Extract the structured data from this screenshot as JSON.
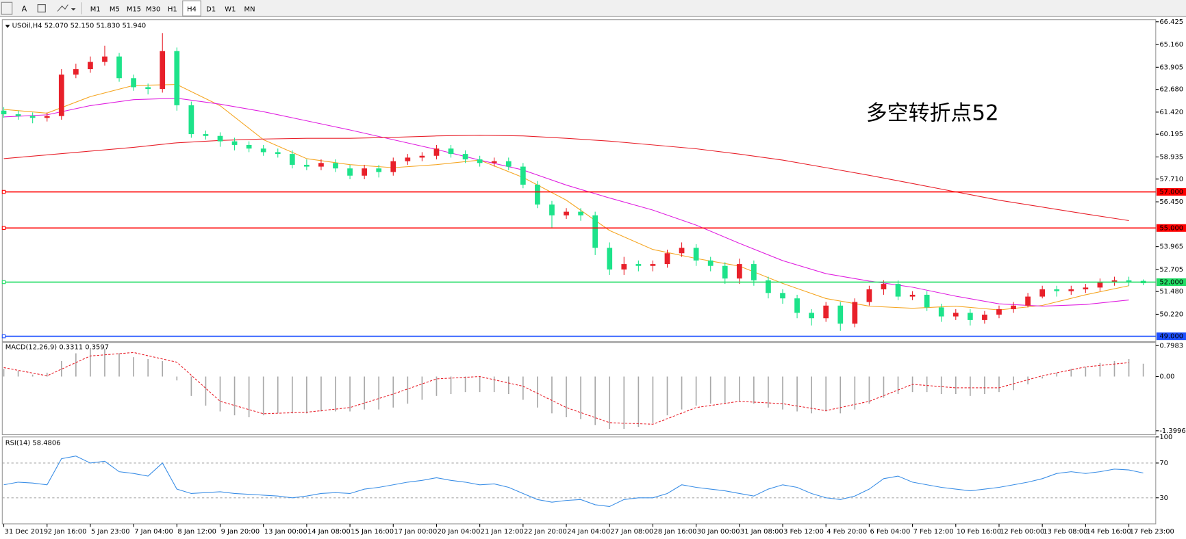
{
  "toolbar": {
    "tools": [
      "A"
    ],
    "timeframes": [
      "M1",
      "M5",
      "M15",
      "M30",
      "H1",
      "H4",
      "D1",
      "W1",
      "MN"
    ],
    "active": 5
  },
  "chart_data": [
    {
      "type": "candlestick",
      "title": "USOil,H4  52.070 52.150 51.830 51.940",
      "annotation": "多空转折点52",
      "annotation_color": "#ff0000",
      "up_color": "#e8202a",
      "down_color": "#1de38a",
      "categories": [
        "31 Dec 2019",
        null,
        null,
        "2 Jan 16:00",
        null,
        null,
        "5 Jan 23:00",
        null,
        null,
        "7 Jan 04:00",
        null,
        null,
        "8 Jan 12:00",
        null,
        null,
        "9 Jan 20:00",
        null,
        null,
        "13 Jan 00:00",
        null,
        null,
        "14 Jan 08:00",
        null,
        null,
        "15 Jan 16:00",
        null,
        null,
        "17 Jan 00:00",
        null,
        null,
        "20 Jan 04:00",
        null,
        null,
        "21 Jan 12:00",
        null,
        null,
        "22 Jan 20:00",
        null,
        null,
        "24 Jan 04:00",
        null,
        null,
        "27 Jan 08:00",
        null,
        null,
        "28 Jan 16:00",
        null,
        null,
        "30 Jan 00:00",
        null,
        null,
        "31 Jan 08:00",
        null,
        null,
        "3 Feb 12:00",
        null,
        null,
        "4 Feb 20:00",
        null,
        null,
        "6 Feb 04:00",
        null,
        null,
        "7 Feb 12:00",
        null,
        null,
        "10 Feb 16:00",
        null,
        null,
        "12 Feb 00:00",
        null,
        null,
        "13 Feb 08:00",
        null,
        null,
        "14 Feb 16:00",
        null,
        null,
        "17 Feb 23:00",
        null
      ],
      "open": [
        61.5,
        61.3,
        61.2,
        61.1,
        61.2,
        63.5,
        63.8,
        64.2,
        64.5,
        63.3,
        62.8,
        62.7,
        64.8,
        61.8,
        60.2,
        60.1,
        59.8,
        59.6,
        59.4,
        59.2,
        59.1,
        58.5,
        58.4,
        58.6,
        58.3,
        57.9,
        58.3,
        58.1,
        58.7,
        58.9,
        59.0,
        59.4,
        59.1,
        58.8,
        58.6,
        58.7,
        58.4,
        57.4,
        56.3,
        55.7,
        55.9,
        55.7,
        53.9,
        52.7,
        53.0,
        52.9,
        53.0,
        53.6,
        53.9,
        53.2,
        52.9,
        52.2,
        53.0,
        52.1,
        51.4,
        51.1,
        50.3,
        50.0,
        50.7,
        49.7,
        50.9,
        51.6,
        51.9,
        51.2,
        51.3,
        50.6,
        50.1,
        50.3,
        49.9,
        50.2,
        50.5,
        50.7,
        51.2,
        51.6,
        51.5,
        51.6,
        51.7,
        52.0,
        52.1,
        52.07
      ],
      "high": [
        61.7,
        61.5,
        61.4,
        61.4,
        63.8,
        64.1,
        64.5,
        65.1,
        64.7,
        63.5,
        63.0,
        65.8,
        65.0,
        62.0,
        60.4,
        60.3,
        60.0,
        59.8,
        59.6,
        59.4,
        59.3,
        58.8,
        58.8,
        58.8,
        58.5,
        58.5,
        58.5,
        58.9,
        59.1,
        59.2,
        59.6,
        59.6,
        59.3,
        59.0,
        58.9,
        58.9,
        58.6,
        57.6,
        56.5,
        56.1,
        56.1,
        55.9,
        54.2,
        53.4,
        53.2,
        53.2,
        53.8,
        54.2,
        54.1,
        53.4,
        53.1,
        53.3,
        53.2,
        52.3,
        51.6,
        51.3,
        50.5,
        50.9,
        50.9,
        51.1,
        51.8,
        52.1,
        52.1,
        51.5,
        51.5,
        50.8,
        50.5,
        50.5,
        50.4,
        50.7,
        50.9,
        51.4,
        51.8,
        51.8,
        51.8,
        51.9,
        52.2,
        52.3,
        52.3,
        52.15
      ],
      "low": [
        61.1,
        61.0,
        60.8,
        60.9,
        61.0,
        63.3,
        63.6,
        64.0,
        63.1,
        62.6,
        62.4,
        62.5,
        61.5,
        60.0,
        59.9,
        59.5,
        59.3,
        59.2,
        59.0,
        58.9,
        58.3,
        58.2,
        58.2,
        58.1,
        57.7,
        57.7,
        57.8,
        57.9,
        58.5,
        58.7,
        58.8,
        58.9,
        58.6,
        58.4,
        58.4,
        58.2,
        57.2,
        56.1,
        55.0,
        55.5,
        55.4,
        53.5,
        52.4,
        52.4,
        52.6,
        52.6,
        52.8,
        53.4,
        52.9,
        52.6,
        51.9,
        51.9,
        51.8,
        51.1,
        50.8,
        50.0,
        49.6,
        49.8,
        49.3,
        49.5,
        50.7,
        51.3,
        51.0,
        51.0,
        50.4,
        49.8,
        49.9,
        49.6,
        49.7,
        50.0,
        50.3,
        50.6,
        51.1,
        51.2,
        51.3,
        51.4,
        51.5,
        51.8,
        51.8,
        51.83
      ],
      "close": [
        61.3,
        61.2,
        61.1,
        61.2,
        63.5,
        63.8,
        64.2,
        64.5,
        63.3,
        62.8,
        62.7,
        64.8,
        61.8,
        60.2,
        60.1,
        59.8,
        59.6,
        59.4,
        59.2,
        59.1,
        58.5,
        58.4,
        58.6,
        58.3,
        57.9,
        58.3,
        58.1,
        58.7,
        58.9,
        59.0,
        59.4,
        59.1,
        58.8,
        58.6,
        58.7,
        58.4,
        57.4,
        56.3,
        55.7,
        55.9,
        55.7,
        53.9,
        52.7,
        53.0,
        52.9,
        53.0,
        53.6,
        53.9,
        53.2,
        52.9,
        52.2,
        53.0,
        52.1,
        51.4,
        51.1,
        50.3,
        50.0,
        50.7,
        49.7,
        50.9,
        51.6,
        51.9,
        51.2,
        51.3,
        50.6,
        50.1,
        50.3,
        49.9,
        50.2,
        50.5,
        50.7,
        51.2,
        51.6,
        51.5,
        51.6,
        51.7,
        52.0,
        52.1,
        52.0,
        51.94
      ],
      "x": [
        0,
        3,
        6,
        9,
        12,
        15,
        18,
        21,
        24,
        27,
        30,
        33,
        36,
        39,
        42,
        45,
        48,
        51,
        54,
        57,
        60,
        63,
        66,
        69,
        72,
        75,
        78
      ],
      "lines": [
        {
          "color": "#f5a623",
          "values": [
            61.57,
            61.36,
            62.28,
            62.9,
            62.95,
            61.77,
            59.89,
            58.84,
            58.51,
            58.34,
            58.51,
            58.76,
            57.8,
            56.54,
            54.86,
            53.81,
            53.31,
            52.89,
            51.93,
            51.09,
            50.67,
            50.55,
            50.67,
            50.46,
            50.71,
            51.3,
            51.8
          ]
        },
        {
          "color": "#e020e0",
          "values": [
            61.15,
            61.27,
            61.78,
            62.11,
            62.19,
            61.86,
            61.44,
            60.94,
            60.43,
            59.89,
            59.35,
            58.76,
            58.21,
            57.38,
            56.66,
            55.99,
            55.16,
            54.15,
            53.19,
            52.47,
            52.06,
            51.72,
            51.22,
            50.8,
            50.67,
            50.76,
            51.01
          ]
        },
        {
          "color": "#e8202a",
          "values": [
            58.84,
            59.05,
            59.26,
            59.47,
            59.72,
            59.85,
            59.93,
            59.97,
            59.97,
            60.02,
            60.1,
            60.14,
            60.1,
            59.97,
            59.81,
            59.6,
            59.39,
            59.09,
            58.76,
            58.34,
            57.92,
            57.46,
            57.0,
            56.54,
            56.16,
            55.78,
            55.41
          ]
        }
      ],
      "levels": [
        {
          "value": 57,
          "label": "57.000",
          "color": "#ff0000"
        },
        {
          "value": 55,
          "label": "55.000",
          "color": "#ff0000"
        },
        {
          "value": 52,
          "label": "52.000",
          "color": "#22dd66"
        },
        {
          "value": 49,
          "label": "49.000",
          "color": "#1e50ff"
        }
      ],
      "ylim": [
        48.7,
        66.5
      ],
      "yticks": [
        66.425,
        {
          "value": 65.16,
          "label": "65.160"
        },
        63.905,
        {
          "value": 62.68,
          "label": "62.680"
        },
        {
          "value": 61.42,
          "label": "61.420"
        },
        60.195,
        58.935,
        {
          "value": 57.71,
          "label": "57.710"
        },
        {
          "value": 56.45,
          "label": "56.450"
        },
        53.965,
        52.705,
        {
          "value": 51.48,
          "label": "51.480"
        },
        {
          "value": 50.22,
          "label": "50.220"
        }
      ]
    },
    {
      "type": "macd",
      "title": "MACD(12,26,9) 0.3311 0.3597",
      "hist_color": "#a8a8a8",
      "signal_color": "#e8202a",
      "histogram": [
        0.2,
        0.15,
        0.05,
        0.1,
        0.4,
        0.6,
        0.72,
        0.72,
        0.6,
        0.5,
        0.45,
        0.4,
        -0.1,
        -0.5,
        -0.75,
        -0.9,
        -1.0,
        -1.05,
        -1.0,
        -0.95,
        -0.95,
        -0.95,
        -0.9,
        -0.9,
        -0.9,
        -0.85,
        -0.85,
        -0.8,
        -0.7,
        -0.6,
        -0.5,
        -0.45,
        -0.4,
        -0.4,
        -0.4,
        -0.45,
        -0.6,
        -0.8,
        -0.95,
        -1.05,
        -1.1,
        -1.25,
        -1.35,
        -1.35,
        -1.3,
        -1.2,
        -1.0,
        -0.85,
        -0.75,
        -0.7,
        -0.7,
        -0.65,
        -0.7,
        -0.8,
        -0.85,
        -0.9,
        -0.95,
        -0.9,
        -0.95,
        -0.85,
        -0.7,
        -0.55,
        -0.45,
        -0.4,
        -0.4,
        -0.45,
        -0.45,
        -0.5,
        -0.45,
        -0.4,
        -0.35,
        -0.2,
        -0.05,
        0.1,
        0.2,
        0.25,
        0.35,
        0.4,
        0.45,
        0.3311
      ],
      "x": [
        0,
        3,
        6,
        9,
        12,
        15,
        18,
        21,
        24,
        27,
        30,
        33,
        36,
        39,
        42,
        45,
        48,
        51,
        54,
        57,
        60,
        63,
        66,
        69,
        72,
        75,
        78
      ],
      "signal": [
        0.23,
        0.02,
        0.53,
        0.62,
        0.37,
        -0.64,
        -0.96,
        -0.92,
        -0.8,
        -0.45,
        -0.06,
        0,
        -0.25,
        -0.8,
        -1.19,
        -1.23,
        -0.8,
        -0.64,
        -0.7,
        -0.88,
        -0.64,
        -0.2,
        -0.29,
        -0.29,
        0.02,
        0.25,
        0.3597
      ],
      "ylim": [
        -1.5,
        0.88
      ],
      "yticks": [
        0.7983,
        {
          "value": 0,
          "label": "0.00"
        },
        -1.3996
      ]
    },
    {
      "type": "line",
      "title": "RSI(14) 58.4806",
      "color": "#3a8ee6",
      "values": [
        45,
        48,
        47,
        45,
        75,
        78,
        70,
        72,
        60,
        58,
        55,
        70,
        40,
        35,
        36,
        37,
        35,
        34,
        33,
        32,
        30,
        32,
        35,
        36,
        35,
        40,
        42,
        45,
        48,
        50,
        53,
        50,
        48,
        45,
        46,
        42,
        35,
        28,
        25,
        27,
        28,
        22,
        20,
        28,
        30,
        30,
        35,
        45,
        42,
        40,
        38,
        35,
        32,
        40,
        45,
        42,
        35,
        30,
        28,
        32,
        40,
        52,
        55,
        48,
        45,
        42,
        40,
        38,
        40,
        42,
        45,
        48,
        52,
        58,
        60,
        58,
        60,
        63,
        62,
        58.4806
      ],
      "levels": [
        70,
        30
      ],
      "ylim": [
        0,
        100
      ],
      "yticks": [
        100,
        70,
        30
      ]
    }
  ]
}
